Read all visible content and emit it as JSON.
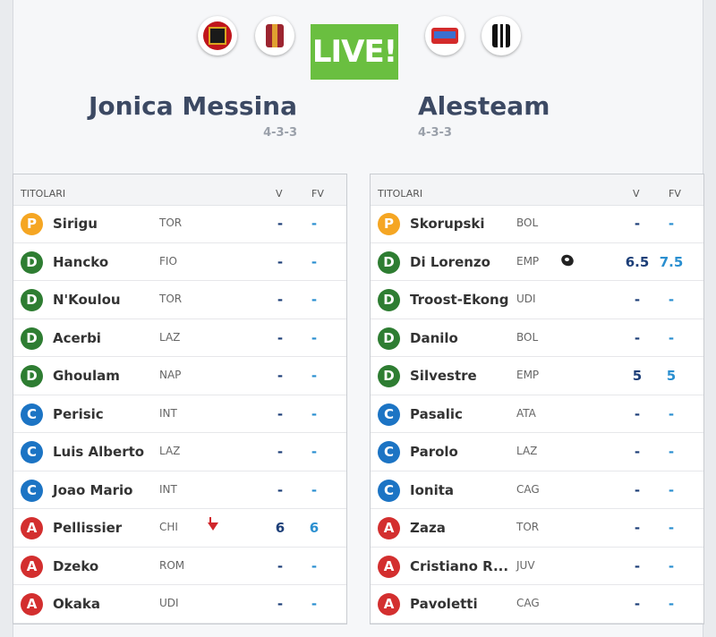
{
  "header": {
    "badge": "LIVE!",
    "home": {
      "name": "Jonica Messina",
      "formation": "4-3-3"
    },
    "away": {
      "name": "Alesteam",
      "formation": "4-3-3"
    }
  },
  "tables": [
    {
      "columns": [
        "TITOLARI",
        "V",
        "FV"
      ],
      "rows": [
        {
          "role": "P",
          "name": "Sirigu",
          "team": "TOR",
          "v": "-",
          "fv": "-"
        },
        {
          "role": "D",
          "name": "Hancko",
          "team": "FIO",
          "v": "-",
          "fv": "-"
        },
        {
          "role": "D",
          "name": "N'Koulou",
          "team": "TOR",
          "v": "-",
          "fv": "-"
        },
        {
          "role": "D",
          "name": "Acerbi",
          "team": "LAZ",
          "v": "-",
          "fv": "-"
        },
        {
          "role": "D",
          "name": "Ghoulam",
          "team": "NAP",
          "v": "-",
          "fv": "-"
        },
        {
          "role": "C",
          "name": "Perisic",
          "team": "INT",
          "v": "-",
          "fv": "-"
        },
        {
          "role": "C",
          "name": "Luis Alberto",
          "team": "LAZ",
          "v": "-",
          "fv": "-"
        },
        {
          "role": "C",
          "name": "Joao Mario",
          "team": "INT",
          "v": "-",
          "fv": "-"
        },
        {
          "role": "A",
          "name": "Pellissier",
          "team": "CHI",
          "v": 6,
          "fv": 6
        },
        {
          "role": "A",
          "name": "Dzeko",
          "team": "ROM",
          "v": "-",
          "fv": "-"
        },
        {
          "role": "A",
          "name": "Okaka",
          "team": "UDI",
          "v": "-",
          "fv": "-"
        }
      ]
    },
    {
      "columns": [
        "TITOLARI",
        "V",
        "FV"
      ],
      "rows": [
        {
          "role": "P",
          "name": "Skorupski",
          "team": "BOL",
          "v": "-",
          "fv": "-"
        },
        {
          "role": "D",
          "name": "Di Lorenzo",
          "team": "EMP",
          "v": 6.5,
          "fv": 7.5
        },
        {
          "role": "D",
          "name": "Troost-Ekong",
          "team": "UDI",
          "v": "-",
          "fv": "-"
        },
        {
          "role": "D",
          "name": "Danilo",
          "team": "BOL",
          "v": "-",
          "fv": "-"
        },
        {
          "role": "D",
          "name": "Silvestre",
          "team": "EMP",
          "v": 5,
          "fv": 5
        },
        {
          "role": "C",
          "name": "Pasalic",
          "team": "ATA",
          "v": "-",
          "fv": "-"
        },
        {
          "role": "C",
          "name": "Parolo",
          "team": "LAZ",
          "v": "-",
          "fv": "-"
        },
        {
          "role": "C",
          "name": "Ionita",
          "team": "CAG",
          "v": "-",
          "fv": "-"
        },
        {
          "role": "A",
          "name": "Zaza",
          "team": "TOR",
          "v": "-",
          "fv": "-"
        },
        {
          "role": "A",
          "name": "Cristiano R...",
          "team": "JUV",
          "v": "-",
          "fv": "-"
        },
        {
          "role": "A",
          "name": "Pavoletti",
          "team": "CAG",
          "v": "-",
          "fv": "-"
        }
      ]
    }
  ]
}
